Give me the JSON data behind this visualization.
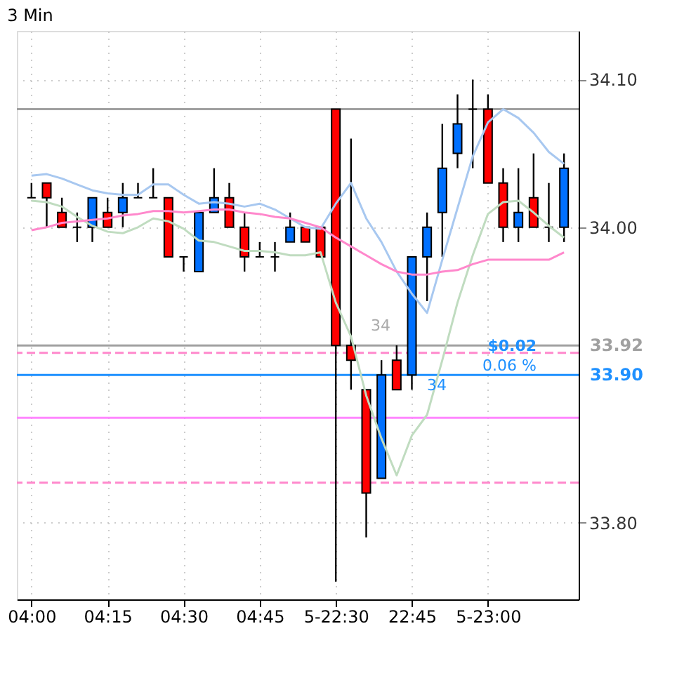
{
  "chart_data": {
    "type": "candlestick",
    "title": "3 Min",
    "categories": [
      "04:00",
      null,
      null,
      null,
      null,
      "04:15",
      null,
      null,
      null,
      null,
      "04:30",
      null,
      null,
      null,
      null,
      "04:45",
      null,
      null,
      null,
      null,
      "5-22:30",
      null,
      null,
      null,
      null,
      "22:45",
      null,
      null,
      null,
      null,
      "5-23:00",
      null,
      null,
      null,
      null,
      null
    ],
    "ohlc": [
      [
        34.02,
        34.03,
        34.02,
        34.02
      ],
      [
        34.03,
        34.03,
        34.0,
        34.02
      ],
      [
        34.01,
        34.02,
        34.0,
        34.0
      ],
      [
        34.0,
        34.01,
        33.99,
        34.0
      ],
      [
        34.0,
        34.02,
        33.99,
        34.02
      ],
      [
        34.01,
        34.02,
        34.0,
        34.0
      ],
      [
        34.01,
        34.03,
        34.0,
        34.02
      ],
      [
        34.02,
        34.03,
        34.02,
        34.02
      ],
      [
        34.02,
        34.04,
        34.02,
        34.02
      ],
      [
        34.02,
        34.02,
        33.98,
        33.98
      ],
      [
        33.98,
        33.98,
        33.97,
        33.98
      ],
      [
        33.97,
        34.01,
        33.97,
        34.01
      ],
      [
        34.01,
        34.04,
        34.01,
        34.02
      ],
      [
        34.02,
        34.03,
        34.0,
        34.0
      ],
      [
        34.0,
        34.01,
        33.97,
        33.98
      ],
      [
        33.98,
        33.99,
        33.98,
        33.98
      ],
      [
        33.98,
        33.99,
        33.97,
        33.98
      ],
      [
        33.99,
        34.01,
        33.99,
        34.0
      ],
      [
        34.0,
        34.0,
        33.99,
        33.99
      ],
      [
        34.0,
        34.0,
        33.98,
        33.98
      ],
      [
        34.08,
        34.08,
        33.76,
        33.92
      ],
      [
        33.92,
        34.06,
        33.89,
        33.91
      ],
      [
        33.89,
        33.89,
        33.79,
        33.82
      ],
      [
        33.83,
        33.91,
        33.83,
        33.9
      ],
      [
        33.91,
        33.92,
        33.89,
        33.89
      ],
      [
        33.9,
        33.98,
        33.89,
        33.98
      ],
      [
        33.98,
        34.01,
        33.95,
        34.0
      ],
      [
        34.01,
        34.07,
        33.98,
        34.04
      ],
      [
        34.05,
        34.09,
        34.04,
        34.07
      ],
      [
        34.08,
        34.1,
        34.04,
        34.08
      ],
      [
        34.08,
        34.09,
        34.03,
        34.03
      ],
      [
        34.03,
        34.04,
        33.99,
        34.0
      ],
      [
        34.0,
        34.04,
        33.99,
        34.01
      ],
      [
        34.02,
        34.05,
        34.0,
        34.0
      ],
      [
        34.0,
        34.03,
        33.99,
        34.0
      ],
      [
        34.0,
        34.05,
        33.99,
        34.04
      ]
    ],
    "colors": [
      "#000000",
      "#ff0000",
      "#ff0000",
      "#000000",
      "#0070ff",
      "#ff0000",
      "#0070ff",
      "#000000",
      "#000000",
      "#ff0000",
      "#000000",
      "#0070ff",
      "#0070ff",
      "#ff0000",
      "#ff0000",
      "#000000",
      "#000000",
      "#0070ff",
      "#ff0000",
      "#ff0000",
      "#ff0000",
      "#ff0000",
      "#ff0000",
      "#0070ff",
      "#ff0000",
      "#0070ff",
      "#0070ff",
      "#0070ff",
      "#0070ff",
      "#000000",
      "#ff0000",
      "#ff0000",
      "#0070ff",
      "#ff0000",
      "#000000",
      "#0070ff"
    ],
    "series": [
      {
        "type": "line",
        "color": "#a8c8f0",
        "values": [
          34.035,
          34.036,
          34.033,
          34.029,
          34.025,
          34.023,
          34.022,
          34.022,
          34.029,
          34.029,
          34.022,
          34.016,
          34.017,
          34.016,
          34.014,
          34.016,
          34.012,
          34.006,
          34.0,
          33.999,
          34.016,
          34.03,
          34.006,
          33.99,
          33.97,
          33.955,
          33.942,
          33.978,
          34.013,
          34.048,
          34.071,
          34.08,
          34.074,
          34.064,
          34.051,
          34.043
        ]
      },
      {
        "type": "line",
        "color": "#c0dcc0",
        "values": [
          34.018,
          34.017,
          34.014,
          34.007,
          34.001,
          33.997,
          33.996,
          34.0,
          34.006,
          34.004,
          33.999,
          33.991,
          33.99,
          33.987,
          33.984,
          33.984,
          33.983,
          33.981,
          33.981,
          33.983,
          33.949,
          33.926,
          33.886,
          33.857,
          33.832,
          33.859,
          33.873,
          33.91,
          33.949,
          33.981,
          34.009,
          34.017,
          34.018,
          34.01,
          34.001,
          33.993
        ]
      },
      {
        "type": "line",
        "color": "#ff88cc",
        "values": [
          33.998,
          34.0,
          34.003,
          34.004,
          34.005,
          34.006,
          34.008,
          34.009,
          34.011,
          34.011,
          34.01,
          34.011,
          34.012,
          34.012,
          34.01,
          34.009,
          34.007,
          34.006,
          34.003,
          34.0,
          33.993,
          33.987,
          33.981,
          33.975,
          33.97,
          33.968,
          33.968,
          33.97,
          33.971,
          33.975,
          33.978,
          33.978,
          33.978,
          33.978,
          33.978,
          33.983
        ]
      }
    ],
    "ylim": [
      33.748,
      34.133
    ],
    "yticks": [
      {
        "value": 34.1,
        "label": "34.10"
      },
      {
        "value": 34.0,
        "label": "34.00"
      },
      {
        "value": 33.8,
        "label": "33.80"
      }
    ],
    "ref_lines": [
      {
        "axis": "y",
        "value": 34.08,
        "color": "#a0a0a0",
        "line_style": "solid"
      },
      {
        "axis": "y",
        "value": 33.92,
        "label": "33.92",
        "color": "#a0a0a0",
        "line_style": "solid"
      },
      {
        "axis": "y",
        "value": 33.9,
        "label": "33.90",
        "color": "#1e90ff",
        "line_style": "solid"
      },
      {
        "axis": "y",
        "value": 33.915,
        "color": "#ff88cc",
        "line_style": "dashed"
      },
      {
        "axis": "y",
        "value": 33.871,
        "color": "#ff88ff",
        "line_style": "solid"
      },
      {
        "axis": "y",
        "value": 33.827,
        "color": "#ff88cc",
        "line_style": "dashed"
      }
    ],
    "annotations": [
      "$0.02",
      "0.06 %",
      "34",
      "34"
    ],
    "grid": true
  }
}
